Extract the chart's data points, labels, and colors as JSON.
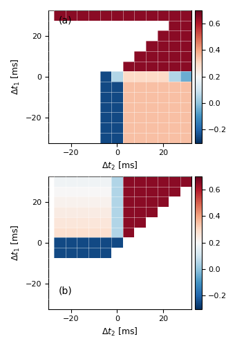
{
  "title_a": "(a)",
  "title_b": "(b)",
  "xlabel": "$\\Delta t_2$ [ms]",
  "ylabel": "$\\Delta t_1$ [ms]",
  "vmin": -0.3,
  "vmax": 0.7,
  "colorbar_ticks": [
    -0.2,
    0,
    0.2,
    0.4,
    0.6
  ],
  "xticks": [
    -20,
    0,
    20
  ],
  "yticks": [
    -20,
    0,
    20
  ],
  "panel_a_data": [
    [
      0.65,
      0.65,
      0.65,
      0.65,
      0.65,
      0.65,
      0.65,
      0.65,
      0.65,
      0.65,
      0.65,
      0.65
    ],
    [
      null,
      null,
      null,
      null,
      null,
      null,
      null,
      null,
      null,
      null,
      0.65,
      0.65
    ],
    [
      null,
      null,
      null,
      null,
      null,
      null,
      null,
      null,
      null,
      0.65,
      0.65,
      0.65
    ],
    [
      null,
      null,
      null,
      null,
      null,
      null,
      null,
      null,
      0.65,
      0.65,
      0.65,
      0.65
    ],
    [
      null,
      null,
      null,
      null,
      null,
      null,
      null,
      0.65,
      0.65,
      0.65,
      0.65,
      0.65
    ],
    [
      null,
      null,
      null,
      null,
      null,
      null,
      0.65,
      0.65,
      0.65,
      0.65,
      0.65,
      0.65
    ],
    [
      null,
      null,
      null,
      null,
      -0.25,
      0.05,
      0.3,
      0.3,
      0.3,
      0.3,
      0.05,
      -0.05
    ],
    [
      null,
      null,
      null,
      null,
      -0.25,
      -0.25,
      0.35,
      0.35,
      0.35,
      0.35,
      0.35,
      0.35
    ],
    [
      null,
      null,
      null,
      null,
      -0.25,
      -0.25,
      0.35,
      0.35,
      0.35,
      0.35,
      0.35,
      0.35
    ],
    [
      null,
      null,
      null,
      null,
      -0.25,
      -0.25,
      0.35,
      0.35,
      0.35,
      0.35,
      0.35,
      0.35
    ],
    [
      null,
      null,
      null,
      null,
      -0.25,
      -0.25,
      0.35,
      0.35,
      0.35,
      0.35,
      0.35,
      0.35
    ],
    [
      null,
      null,
      null,
      null,
      -0.25,
      -0.25,
      0.35,
      0.35,
      0.35,
      0.35,
      0.35,
      0.35
    ],
    [
      null,
      null,
      null,
      null,
      -0.25,
      -0.25,
      0.35,
      0.35,
      0.35,
      0.35,
      0.35,
      0.35
    ]
  ],
  "panel_b_data": [
    [
      0.18,
      0.18,
      0.18,
      0.18,
      0.18,
      0.05,
      0.65,
      0.65,
      0.65,
      0.65,
      0.65,
      0.65
    ],
    [
      0.2,
      0.2,
      0.2,
      0.2,
      0.2,
      0.05,
      0.65,
      0.65,
      0.65,
      0.65,
      0.65,
      null
    ],
    [
      0.22,
      0.22,
      0.22,
      0.22,
      0.22,
      0.05,
      0.65,
      0.65,
      0.65,
      0.65,
      null,
      null
    ],
    [
      0.24,
      0.24,
      0.24,
      0.24,
      0.24,
      0.05,
      0.65,
      0.65,
      0.65,
      null,
      null,
      null
    ],
    [
      0.26,
      0.26,
      0.26,
      0.26,
      0.26,
      0.05,
      0.65,
      0.65,
      null,
      null,
      null,
      null
    ],
    [
      0.28,
      0.28,
      0.28,
      0.28,
      0.28,
      0.05,
      0.65,
      null,
      null,
      null,
      null,
      null
    ],
    [
      -0.25,
      -0.25,
      -0.25,
      -0.25,
      -0.25,
      -0.25,
      null,
      null,
      null,
      null,
      null,
      null
    ],
    [
      -0.25,
      -0.25,
      -0.25,
      -0.25,
      -0.25,
      null,
      null,
      null,
      null,
      null,
      null,
      null
    ],
    [
      null,
      null,
      null,
      null,
      null,
      null,
      null,
      null,
      null,
      null,
      null,
      null
    ],
    [
      null,
      null,
      null,
      null,
      null,
      null,
      null,
      null,
      null,
      null,
      null,
      null
    ],
    [
      null,
      null,
      null,
      null,
      null,
      null,
      null,
      null,
      null,
      null,
      null,
      null
    ],
    [
      null,
      null,
      null,
      null,
      null,
      null,
      null,
      null,
      null,
      null,
      null,
      null
    ],
    [
      null,
      null,
      null,
      null,
      null,
      null,
      null,
      null,
      null,
      null,
      null,
      null
    ]
  ],
  "dt1_vals": [
    30,
    25,
    20,
    15,
    10,
    5,
    0,
    -5,
    -10,
    -15,
    -20,
    -25,
    -30
  ],
  "dt2_vals": [
    -25,
    -20,
    -15,
    -10,
    -5,
    0,
    5,
    10,
    15,
    20,
    25,
    30
  ]
}
